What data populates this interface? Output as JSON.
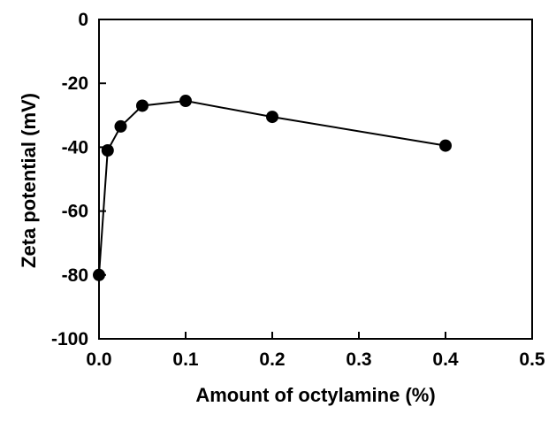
{
  "chart_data": {
    "type": "line",
    "title": "",
    "xlabel": "Amount of octylamine (%)",
    "ylabel": "Zeta potential (mV)",
    "xlim": [
      0.0,
      0.5
    ],
    "ylim": [
      -100,
      0
    ],
    "x_ticks": [
      0.0,
      0.1,
      0.2,
      0.3,
      0.4,
      0.5
    ],
    "x_tick_labels": [
      "0.0",
      "0.1",
      "0.2",
      "0.3",
      "0.4",
      "0.5"
    ],
    "y_ticks": [
      0,
      -20,
      -40,
      -60,
      -80,
      -100
    ],
    "y_tick_labels": [
      "0",
      "-20",
      "-40",
      "-60",
      "-80",
      "-100"
    ],
    "grid": false,
    "legend": "none",
    "series": [
      {
        "x": [
          0.0,
          0.01,
          0.025,
          0.05,
          0.1,
          0.2,
          0.4
        ],
        "y": [
          -80.0,
          -41.0,
          -33.5,
          -27.0,
          -25.5,
          -30.5,
          -39.5
        ],
        "color": "#000000",
        "marker": "filled-circle"
      }
    ]
  }
}
